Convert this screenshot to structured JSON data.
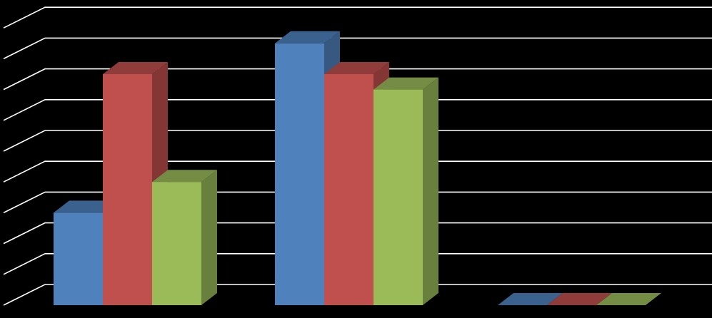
{
  "chart_data": {
    "type": "bar",
    "title": "",
    "xlabel": "",
    "ylabel": "",
    "categories": [
      "",
      "",
      ""
    ],
    "series": [
      {
        "values": [
          3,
          8.5,
          0
        ],
        "color": "#4F81BD"
      },
      {
        "values": [
          7.5,
          7.5,
          0
        ],
        "color": "#C0504D"
      },
      {
        "values": [
          4,
          7,
          0
        ],
        "color": "#9BBB59"
      }
    ],
    "ylim": [
      0,
      10
    ],
    "grid": true,
    "legend": "none",
    "background": "#000000",
    "gridline_color": "#FFFFFF",
    "bar_style": "3d-clustered"
  }
}
